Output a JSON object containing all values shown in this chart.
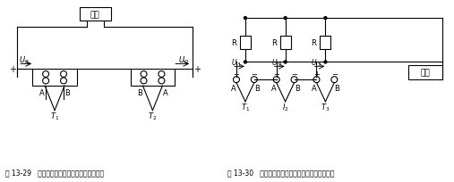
{
  "bg_color": "#ffffff",
  "line_color": "#000000",
  "fig_label_left": "图 13-29   利用热电偶测量两点间温度差的接线",
  "fig_label_right": "图 13-30   利用热电偶测量多点的平均温度值的接线",
  "meter_label": "仪表"
}
